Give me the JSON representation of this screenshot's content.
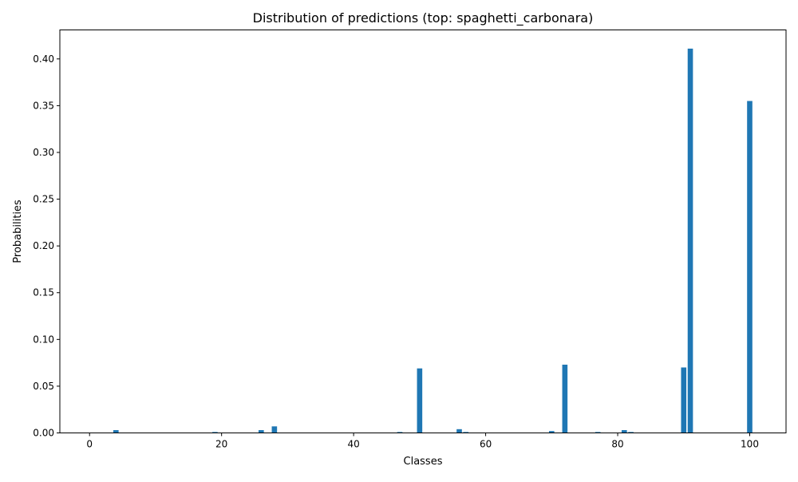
{
  "chart_data": {
    "type": "bar",
    "title": "Distribution of predictions (top: spaghetti_carbonara)",
    "xlabel": "Classes",
    "ylabel": "Probabilities",
    "xlim": [
      -4.5,
      105.5
    ],
    "ylim": [
      0,
      0.431
    ],
    "x_ticks": [
      0,
      20,
      40,
      60,
      80,
      100
    ],
    "y_ticks": [
      0.0,
      0.05,
      0.1,
      0.15,
      0.2,
      0.25,
      0.3,
      0.35,
      0.4
    ],
    "grid": false,
    "bar_color": "#1f77b4",
    "bars": [
      {
        "x": 4,
        "value": 0.003
      },
      {
        "x": 19,
        "value": 0.001
      },
      {
        "x": 26,
        "value": 0.003
      },
      {
        "x": 28,
        "value": 0.007
      },
      {
        "x": 47,
        "value": 0.001
      },
      {
        "x": 50,
        "value": 0.069
      },
      {
        "x": 56,
        "value": 0.004
      },
      {
        "x": 57,
        "value": 0.001
      },
      {
        "x": 70,
        "value": 0.002
      },
      {
        "x": 72,
        "value": 0.073
      },
      {
        "x": 77,
        "value": 0.001
      },
      {
        "x": 81,
        "value": 0.003
      },
      {
        "x": 82,
        "value": 0.001
      },
      {
        "x": 90,
        "value": 0.07
      },
      {
        "x": 91,
        "value": 0.411
      },
      {
        "x": 100,
        "value": 0.355
      }
    ]
  }
}
